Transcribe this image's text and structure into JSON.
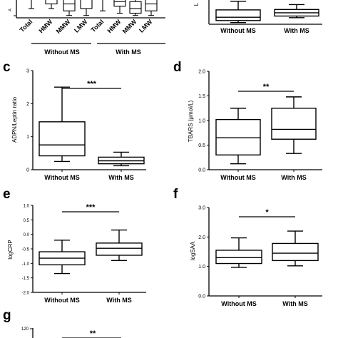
{
  "chart_data": [
    {
      "panel": "a",
      "type": "box",
      "categories": [
        "Total",
        "HMW",
        "MMW",
        "LMW",
        "Total",
        "HMW",
        "MMW",
        "LMW"
      ],
      "groups": [
        "Without MS",
        "With MS"
      ],
      "boxes": [
        {
          "whislo": 0.2,
          "q1": 0.5,
          "med": 0.7,
          "q3": 0.9,
          "whishi": 1.0
        },
        {
          "whislo": 0.2,
          "q1": 0.3,
          "med": 0.4,
          "q3": 0.6,
          "whishi": 0.8
        },
        {
          "whislo": 0.05,
          "q1": 0.15,
          "med": 0.3,
          "q3": 0.55,
          "whishi": 0.8
        },
        {
          "whislo": 0.05,
          "q1": 0.2,
          "med": 0.4,
          "q3": 0.7,
          "whishi": 0.95
        },
        {
          "whislo": 0.15,
          "q1": 0.4,
          "med": 0.55,
          "q3": 0.75,
          "whishi": 0.95
        },
        {
          "whislo": 0.1,
          "q1": 0.25,
          "med": 0.35,
          "q3": 0.5,
          "whishi": 0.75
        },
        {
          "whislo": 0.05,
          "q1": 0.1,
          "med": 0.2,
          "q3": 0.35,
          "whishi": 0.55
        },
        {
          "whislo": 0.05,
          "q1": 0.15,
          "med": 0.3,
          "q3": 0.5,
          "whishi": 0.75
        }
      ]
    },
    {
      "panel": "b",
      "type": "box",
      "categories": [
        "Without MS",
        "With MS"
      ],
      "ylabel": "L",
      "boxes": [
        {
          "whislo": 2,
          "q1": 4.5,
          "med": 8.5,
          "q3": 17.5,
          "whishi": 28
        },
        {
          "whislo": 8,
          "q1": 10,
          "med": 14,
          "q3": 18,
          "whishi": 24
        }
      ]
    },
    {
      "panel": "c",
      "type": "box",
      "categories": [
        "Without MS",
        "With MS"
      ],
      "ylabel": "ADPN/Leptin ratio",
      "yticks": [
        "0",
        "1",
        "2",
        "3"
      ],
      "ylim": [
        0,
        3
      ],
      "significance": "***",
      "boxes": [
        {
          "whislo": 0.25,
          "q1": 0.42,
          "med": 0.75,
          "q3": 1.45,
          "whishi": 2.5
        },
        {
          "whislo": 0.12,
          "q1": 0.18,
          "med": 0.27,
          "q3": 0.38,
          "whishi": 0.53
        }
      ]
    },
    {
      "panel": "d",
      "type": "box",
      "categories": [
        "Without MS",
        "With MS"
      ],
      "ylabel": "TBARS (μmol/L)",
      "yticks": [
        "0.0",
        "0.5",
        "1.0",
        "1.5",
        "2.0"
      ],
      "ylim": [
        0,
        2
      ],
      "significance": "**",
      "boxes": [
        {
          "whislo": 0.12,
          "q1": 0.3,
          "med": 0.65,
          "q3": 1.02,
          "whishi": 1.25
        },
        {
          "whislo": 0.33,
          "q1": 0.62,
          "med": 0.82,
          "q3": 1.25,
          "whishi": 1.48
        }
      ]
    },
    {
      "panel": "e",
      "type": "box",
      "categories": [
        "Without MS",
        "With MS"
      ],
      "ylabel": "logCRP",
      "yticks": [
        "-2.0",
        "-1.5",
        "-1.0",
        "-0.5",
        "0.0",
        "0.5",
        "1.0"
      ],
      "ylim": [
        -2,
        1
      ],
      "significance": "***",
      "boxes": [
        {
          "whislo": -1.35,
          "q1": -1.05,
          "med": -0.82,
          "q3": -0.6,
          "whishi": -0.2
        },
        {
          "whislo": -0.9,
          "q1": -0.72,
          "med": -0.48,
          "q3": -0.3,
          "whishi": 0.15
        }
      ]
    },
    {
      "panel": "f",
      "type": "box",
      "categories": [
        "Without MS",
        "With MS"
      ],
      "ylabel": "logSAA",
      "yticks": [
        "0.0",
        "1.0",
        "2.0",
        "3.0"
      ],
      "ylim": [
        0,
        3
      ],
      "significance": "*",
      "boxes": [
        {
          "whislo": 0.97,
          "q1": 1.1,
          "med": 1.3,
          "q3": 1.55,
          "whishi": 1.97
        },
        {
          "whislo": 1.02,
          "q1": 1.2,
          "med": 1.45,
          "q3": 1.78,
          "whishi": 2.2
        }
      ]
    },
    {
      "panel": "g",
      "type": "box",
      "ytick_top": "120",
      "significance": "**"
    }
  ]
}
